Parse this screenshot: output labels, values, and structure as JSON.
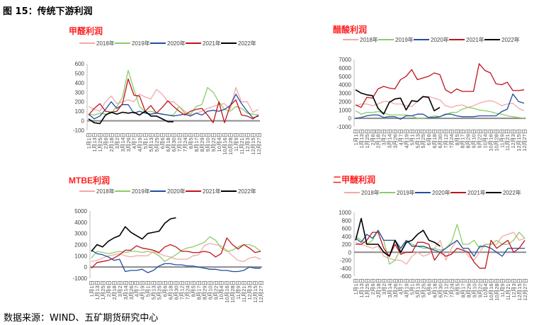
{
  "figure_title": "图 15：传统下游利润",
  "source": "数据来源：WIND、五矿期货研究中心",
  "colors": {
    "2018年": "#f2a9a9",
    "2019年": "#8ccc68",
    "2020年": "#1f4e9e",
    "2021年": "#c0141c",
    "2022年": "#000000",
    "title": "#ff2020",
    "zero_line": "#8c8c8c"
  },
  "chart_data": [
    {
      "type": "line",
      "title": "甲醛利润",
      "xlabel": "",
      "ylabel": "",
      "ylim": [
        -100,
        600
      ],
      "yticks": [
        -100,
        0,
        100,
        200,
        300,
        400,
        500,
        600
      ],
      "legend_position": "top",
      "categories": [
        "1月1日",
        "1月13日",
        "1月25日",
        "2月6日",
        "2月18日",
        "3月2日",
        "3月14日",
        "3月26日",
        "4月7日",
        "4月19日",
        "5月1日",
        "5月13日",
        "5月25日",
        "6月6日",
        "6月18日",
        "6月30日",
        "7月12日",
        "7月24日",
        "8月5日",
        "8月17日",
        "8月29日",
        "9月10日",
        "9月22日",
        "10月4日",
        "10月16日",
        "10月28日",
        "11月9日",
        "11月21日",
        "12月3日",
        "12月15日",
        "12月27日"
      ],
      "series": [
        {
          "name": "2018年",
          "values": [
            150,
            120,
            100,
            200,
            260,
            180,
            200,
            220,
            200,
            280,
            250,
            230,
            330,
            280,
            200,
            200,
            150,
            100,
            60,
            80,
            100,
            130,
            150,
            170,
            180,
            120,
            350,
            200,
            200,
            90,
            120
          ]
        },
        {
          "name": "2019年",
          "values": [
            70,
            60,
            80,
            70,
            80,
            150,
            250,
            530,
            330,
            150,
            90,
            100,
            80,
            70,
            60,
            60,
            150,
            80,
            70,
            150,
            170,
            350,
            300,
            200,
            120,
            100,
            150,
            130,
            80,
            70,
            60
          ]
        },
        {
          "name": "2020年",
          "values": [
            70,
            20,
            50,
            120,
            200,
            130,
            170,
            170,
            80,
            100,
            80,
            70,
            80,
            70,
            60,
            50,
            60,
            70,
            50,
            80,
            60,
            100,
            110,
            100,
            120,
            160,
            280,
            180,
            100,
            30,
            50
          ]
        },
        {
          "name": "2021年",
          "values": [
            60,
            130,
            180,
            100,
            90,
            100,
            180,
            440,
            270,
            260,
            100,
            160,
            80,
            140,
            210,
            150,
            100,
            60,
            100,
            120,
            130,
            60,
            -20,
            200,
            -20,
            160,
            220,
            60,
            50,
            20,
            60
          ]
        },
        {
          "name": "2022年",
          "values": [
            20,
            -20,
            -30,
            60,
            90,
            70,
            90,
            80,
            90,
            60,
            100,
            50,
            50,
            20,
            -10,
            -10,
            null,
            null,
            null,
            null,
            null,
            null,
            null,
            null,
            null,
            null,
            null,
            null,
            null,
            null,
            null
          ]
        }
      ]
    },
    {
      "type": "line",
      "title": "醋酸利润",
      "xlabel": "",
      "ylabel": "",
      "ylim": [
        -1000,
        7000
      ],
      "yticks": [
        -1000,
        0,
        1000,
        2000,
        3000,
        4000,
        5000,
        6000,
        7000
      ],
      "legend_position": "top",
      "categories": [
        "1月1日",
        "1月13日",
        "1月25日",
        "2月6日",
        "2月18日",
        "3月2日",
        "3月14日",
        "3月26日",
        "4月7日",
        "4月19日",
        "5月1日",
        "5月13日",
        "5月25日",
        "6月6日",
        "6月18日",
        "6月30日",
        "7月12日",
        "7月24日",
        "8月5日",
        "8月17日",
        "8月29日",
        "9月10日",
        "9月22日",
        "10月4日",
        "10月16日",
        "10月28日",
        "11月9日",
        "11月21日",
        "12月3日",
        "12月15日",
        "12月27日"
      ],
      "series": [
        {
          "name": "2018年",
          "values": [
            1500,
            1700,
            1700,
            1500,
            1700,
            2000,
            2000,
            1700,
            1700,
            1500,
            1400,
            2000,
            2500,
            2600,
            2400,
            2200,
            1500,
            1300,
            1500,
            1600,
            1300,
            1500,
            1800,
            2000,
            2100,
            1900,
            1500,
            1700,
            1800,
            1200,
            900
          ]
        },
        {
          "name": "2019年",
          "values": [
            900,
            500,
            700,
            700,
            800,
            700,
            400,
            400,
            400,
            400,
            300,
            0,
            0,
            100,
            300,
            200,
            400,
            700,
            700,
            1100,
            1300,
            1200,
            1000,
            900,
            800,
            600,
            500,
            300,
            200,
            100,
            0
          ]
        },
        {
          "name": "2020年",
          "values": [
            0,
            100,
            300,
            400,
            400,
            100,
            200,
            200,
            -100,
            300,
            300,
            500,
            500,
            100,
            100,
            200,
            500,
            500,
            300,
            200,
            200,
            200,
            300,
            300,
            300,
            300,
            800,
            1100,
            2900,
            2000,
            1800
          ]
        },
        {
          "name": "2021年",
          "values": [
            1600,
            1300,
            2500,
            2400,
            3500,
            3800,
            3600,
            3500,
            4600,
            5000,
            5800,
            4600,
            4800,
            5000,
            5400,
            5200,
            3400,
            3000,
            3500,
            3200,
            3200,
            3200,
            6500,
            5700,
            5400,
            4100,
            4000,
            4300,
            3300,
            3300,
            3400
          ]
        },
        {
          "name": "2022年",
          "values": [
            3400,
            3000,
            2800,
            2700,
            1200,
            500,
            1900,
            2300,
            2400,
            1000,
            2100,
            2000,
            2600,
            2500,
            900,
            1300,
            null,
            null,
            null,
            null,
            null,
            null,
            null,
            null,
            null,
            null,
            null,
            null,
            null,
            null,
            null
          ]
        }
      ]
    },
    {
      "type": "line",
      "title": "MTBE利润",
      "xlabel": "",
      "ylabel": "",
      "ylim": [
        -1000,
        5000
      ],
      "yticks": [
        -1000,
        0,
        1000,
        2000,
        3000,
        4000,
        5000
      ],
      "legend_position": "top",
      "categories": [
        "1月1日",
        "1月13日",
        "1月25日",
        "2月6日",
        "2月18日",
        "3月2日",
        "3月14日",
        "3月26日",
        "4月7日",
        "4月19日",
        "5月1日",
        "5月13日",
        "5月25日",
        "6月6日",
        "6月18日",
        "6月30日",
        "7月12日",
        "7月24日",
        "8月5日",
        "8月17日",
        "8月29日",
        "9月10日",
        "9月22日",
        "10月4日",
        "10月16日",
        "10月28日",
        "11月9日",
        "11月21日",
        "12月3日",
        "12月15日",
        "12月27日"
      ],
      "series": [
        {
          "name": "2018年",
          "values": [
            500,
            600,
            800,
            1000,
            1100,
            1200,
            1000,
            900,
            1000,
            1000,
            1000,
            1400,
            1200,
            1000,
            900,
            700,
            700,
            700,
            1000,
            1100,
            1900,
            2100,
            2000,
            1900,
            1500,
            1000,
            600,
            500,
            800,
            900,
            700
          ]
        },
        {
          "name": "2019年",
          "values": [
            800,
            1400,
            1300,
            1200,
            1300,
            1400,
            1300,
            1400,
            1400,
            1300,
            1400,
            1300,
            1000,
            500,
            800,
            1100,
            1500,
            1700,
            1800,
            2000,
            2200,
            2700,
            2400,
            1700,
            1400,
            1500,
            1800,
            2000,
            2000,
            1800,
            1400
          ]
        },
        {
          "name": "2020年",
          "values": [
            1500,
            1200,
            1100,
            900,
            600,
            700,
            -400,
            -300,
            -300,
            -200,
            -500,
            -300,
            100,
            300,
            300,
            200,
            200,
            100,
            100,
            0,
            -100,
            -200,
            -200,
            -300,
            -300,
            -400,
            -400,
            -300,
            0,
            -100,
            -100
          ]
        },
        {
          "name": "2021年",
          "values": [
            -100,
            400,
            500,
            600,
            800,
            1100,
            1500,
            1500,
            1900,
            1700,
            1600,
            1500,
            1300,
            1800,
            2000,
            1800,
            1400,
            1400,
            1300,
            1300,
            1400,
            1300,
            900,
            1200,
            2600,
            2000,
            1600,
            2000,
            1700,
            1300,
            1400
          ]
        },
        {
          "name": "2022年",
          "values": [
            1400,
            2000,
            1800,
            2300,
            2600,
            2800,
            3600,
            3100,
            2800,
            2500,
            3000,
            3100,
            3200,
            3900,
            4300,
            4400,
            null,
            null,
            null,
            null,
            null,
            null,
            null,
            null,
            null,
            null,
            null,
            null,
            null,
            null,
            null
          ]
        }
      ]
    },
    {
      "type": "line",
      "title": "二甲醚利润",
      "xlabel": "",
      "ylabel": "",
      "ylim": [
        -600,
        1000
      ],
      "yticks": [
        -600,
        -400,
        -200,
        0,
        200,
        400,
        600,
        800,
        1000
      ],
      "legend_position": "top",
      "categories": [
        "1月1日",
        "1月13日",
        "1月25日",
        "2月6日",
        "2月18日",
        "3月2日",
        "3月14日",
        "3月26日",
        "4月7日",
        "4月19日",
        "5月1日",
        "5月13日",
        "5月25日",
        "6月6日",
        "6月18日",
        "6月30日",
        "7月12日",
        "7月24日",
        "8月5日",
        "8月17日",
        "8月29日",
        "9月10日",
        "9月22日",
        "10月4日",
        "10月16日",
        "10月28日",
        "11月9日",
        "11月21日",
        "12月3日",
        "12月15日",
        "12月27日"
      ],
      "series": [
        {
          "name": "2018年",
          "values": [
            250,
            200,
            150,
            100,
            150,
            -100,
            -150,
            -200,
            -200,
            -300,
            -100,
            0,
            -100,
            -50,
            100,
            300,
            -200,
            100,
            300,
            100,
            -100,
            -200,
            0,
            200,
            200,
            200,
            400,
            450,
            500,
            300,
            350
          ]
        },
        {
          "name": "2019年",
          "values": [
            400,
            300,
            200,
            300,
            550,
            300,
            -300,
            -200,
            100,
            300,
            200,
            150,
            100,
            100,
            100,
            50,
            100,
            250,
            700,
            200,
            200,
            300,
            100,
            200,
            200,
            300,
            200,
            200,
            300,
            500,
            350
          ]
        },
        {
          "name": "2020年",
          "values": [
            350,
            250,
            450,
            350,
            550,
            300,
            300,
            300,
            100,
            300,
            150,
            150,
            150,
            100,
            50,
            0,
            100,
            200,
            300,
            100,
            100,
            -100,
            150,
            150,
            100,
            0,
            -100,
            100,
            100,
            100,
            100
          ]
        },
        {
          "name": "2021年",
          "values": [
            200,
            200,
            300,
            500,
            500,
            100,
            -100,
            200,
            -50,
            0,
            0,
            250,
            250,
            200,
            -200,
            0,
            -100,
            -50,
            100,
            50,
            0,
            -250,
            -400,
            -400,
            300,
            100,
            200,
            300,
            0,
            100,
            300
          ]
        },
        {
          "name": "2022年",
          "values": [
            300,
            850,
            200,
            200,
            200,
            0,
            -100,
            300,
            0,
            250,
            300,
            450,
            550,
            300,
            250,
            150,
            null,
            null,
            null,
            null,
            null,
            null,
            null,
            null,
            null,
            null,
            null,
            null,
            null,
            null,
            null
          ]
        }
      ]
    }
  ]
}
